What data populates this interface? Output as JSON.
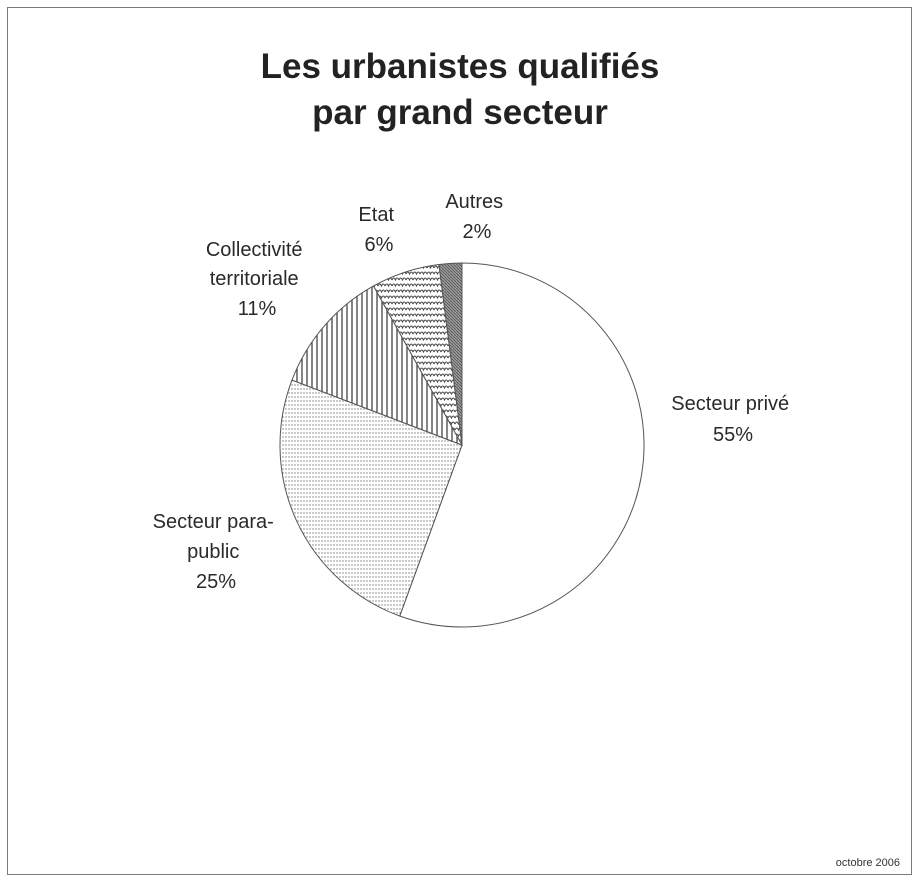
{
  "chart_data": {
    "type": "pie",
    "title": [
      "Les urbanistes qualifiés",
      "par grand secteur"
    ],
    "slices": [
      {
        "label": [
          "Secteur privé"
        ],
        "value": 55,
        "value_label": "55%",
        "pattern": "none"
      },
      {
        "label": [
          "Secteur para-",
          "public"
        ],
        "value": 25,
        "value_label": "25%",
        "pattern": "fine-vertical"
      },
      {
        "label": [
          "Collectivité",
          "territoriale"
        ],
        "value": 11,
        "value_label": "11%",
        "pattern": "vertical-stripes"
      },
      {
        "label": [
          "Etat"
        ],
        "value": 6,
        "value_label": "6%",
        "pattern": "scallop"
      },
      {
        "label": [
          "Autres"
        ],
        "value": 2,
        "value_label": "2%",
        "pattern": "dense-hatch"
      }
    ],
    "start_direction": "top",
    "direction": "clockwise",
    "legend": "none"
  },
  "footer": {
    "date": "octobre  2006"
  },
  "colors": {
    "stroke": "#555555",
    "background": "#ffffff",
    "pattern_ink": "#444444"
  }
}
